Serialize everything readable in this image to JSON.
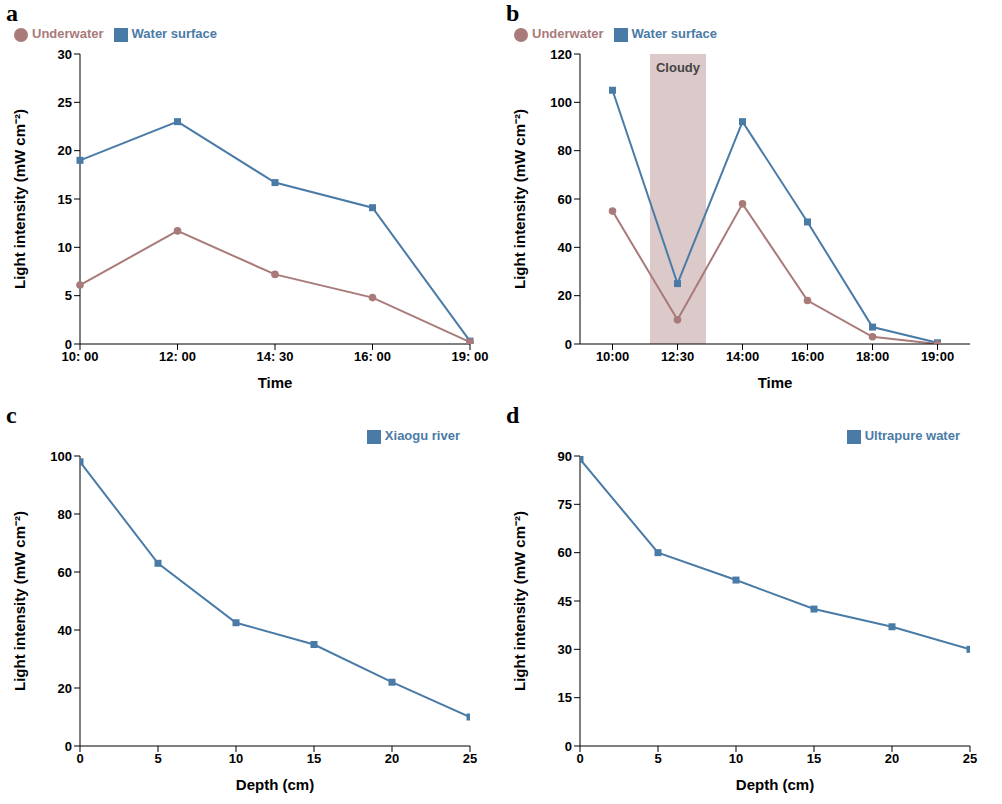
{
  "chart_data": [
    {
      "label": "a",
      "type": "line",
      "x_label": "Time",
      "y_label": "Light intensity (mW cm⁻²)",
      "categories": [
        "10: 00",
        "12: 00",
        "14: 30",
        "16: 00",
        "19: 00"
      ],
      "series": [
        {
          "name": "Water surface",
          "color": "#4a7ba7",
          "marker": "square",
          "values": [
            19,
            23,
            16.7,
            14.1,
            0.3
          ]
        },
        {
          "name": "Underwater",
          "color": "#a97a7a",
          "marker": "circle",
          "values": [
            6.1,
            11.7,
            7.2,
            4.8,
            0.2
          ]
        }
      ],
      "ylim": [
        0,
        30
      ],
      "yticks": [
        0,
        5,
        10,
        15,
        20,
        25,
        30
      ],
      "legend": "top left"
    },
    {
      "label": "b",
      "type": "line",
      "x_label": "Time",
      "y_label": "Light intensity (mW cm⁻²)",
      "categories": [
        "10:00",
        "12:30",
        "14:00",
        "16:00",
        "18:00",
        "19:00"
      ],
      "series": [
        {
          "name": "Water surface",
          "color": "#4a7ba7",
          "marker": "square",
          "values": [
            105,
            25,
            92,
            50.5,
            7,
            0.5
          ]
        },
        {
          "name": "Underwater",
          "color": "#a97a7a",
          "marker": "circle",
          "values": [
            55,
            10,
            58,
            18,
            3,
            0
          ]
        }
      ],
      "annotation": {
        "text": "Cloudy",
        "category": "12:30",
        "color": "#dcc9c9"
      },
      "ylim": [
        0,
        120
      ],
      "yticks": [
        0,
        20,
        40,
        60,
        80,
        100,
        120
      ],
      "legend": "top left"
    },
    {
      "label": "c",
      "type": "line",
      "x_label": "Depth (cm)",
      "y_label": "Light intensity (mW cm⁻²)",
      "x": [
        0,
        5,
        10,
        15,
        20,
        25
      ],
      "series": [
        {
          "name": "Xiaogu river",
          "color": "#4a7ba7",
          "marker": "square",
          "values": [
            98,
            63,
            42.5,
            35,
            22,
            10
          ]
        }
      ],
      "xlim": [
        0,
        25
      ],
      "xticks": [
        0,
        5,
        10,
        15,
        20,
        25
      ],
      "ylim": [
        0,
        100
      ],
      "yticks": [
        0,
        20,
        40,
        60,
        80,
        100
      ],
      "legend": "top right"
    },
    {
      "label": "d",
      "type": "line",
      "x_label": "Depth (cm)",
      "y_label": "Light intensity (mW cm⁻²)",
      "x": [
        0,
        5,
        10,
        15,
        20,
        25
      ],
      "series": [
        {
          "name": "Ultrapure water",
          "color": "#4a7ba7",
          "marker": "square",
          "values": [
            89,
            60,
            51.5,
            42.5,
            37,
            30
          ]
        }
      ],
      "xlim": [
        0,
        25
      ],
      "xticks": [
        0,
        5,
        10,
        15,
        20,
        25
      ],
      "ylim": [
        0,
        90
      ],
      "yticks": [
        0,
        15,
        30,
        45,
        60,
        75,
        90
      ],
      "legend": "top right"
    }
  ]
}
